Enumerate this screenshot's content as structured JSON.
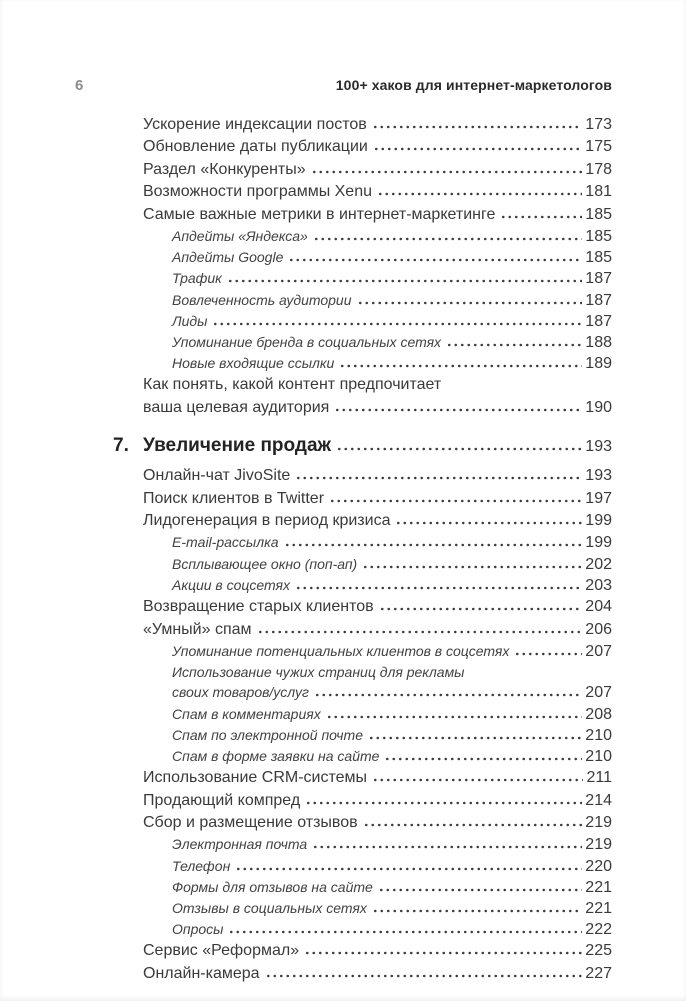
{
  "page_header": {
    "page_number": "6",
    "running_title": "100+ хаков для интернет-маркетологов"
  },
  "colors": {
    "background": "#ffffff",
    "body_text": "#3a3a3a",
    "chapter_text": "#232323",
    "folio_gray": "#8b8b8b"
  },
  "toc": {
    "entries": [
      {
        "level": 1,
        "title": "Ускорение индексации постов",
        "page": "173"
      },
      {
        "level": 1,
        "title": "Обновление даты публикации",
        "page": "175"
      },
      {
        "level": 1,
        "title": "Раздел «Конкуренты»",
        "page": "178"
      },
      {
        "level": 1,
        "title": "Возможности программы Xenu",
        "page": "181"
      },
      {
        "level": 1,
        "title": "Самые важные метрики в интернет-маркетинге",
        "page": "185"
      },
      {
        "level": 2,
        "title": "Апдейты «Яндекса»",
        "page": "185"
      },
      {
        "level": 2,
        "title": "Апдейты Google",
        "page": "185"
      },
      {
        "level": 2,
        "title": "Трафик",
        "page": "187"
      },
      {
        "level": 2,
        "title": "Вовлеченность аудитории",
        "page": "187"
      },
      {
        "level": 2,
        "title": "Лиды",
        "page": "187"
      },
      {
        "level": 2,
        "title": "Упоминание бренда в социальных сетях",
        "page": "188"
      },
      {
        "level": 2,
        "title": "Новые входящие ссылки",
        "page": "189"
      },
      {
        "level": 1,
        "title": "Как понять, какой контент предпочитает",
        "title_line2": "ваша целевая аудитория",
        "page": "190"
      },
      {
        "level": 0,
        "number": "7.",
        "title": "Увеличение продаж",
        "page": "193"
      },
      {
        "level": 1,
        "title": "Онлайн-чат JivoSite",
        "page": "193"
      },
      {
        "level": 1,
        "title": "Поиск клиентов в Twitter",
        "page": "197"
      },
      {
        "level": 1,
        "title": "Лидогенерация в период кризиса",
        "page": "199"
      },
      {
        "level": 2,
        "title": "E-mail-рассылка",
        "page": "199"
      },
      {
        "level": 2,
        "title": "Всплывающее окно (поп-ап)",
        "page": "202"
      },
      {
        "level": 2,
        "title": "Акции в соцсетях",
        "page": "203"
      },
      {
        "level": 1,
        "title": "Возвращение старых клиентов",
        "page": "204"
      },
      {
        "level": 1,
        "title": "«Умный» спам",
        "page": "206"
      },
      {
        "level": 2,
        "title": "Упоминание потенциальных клиентов в соцсетях",
        "page": "207"
      },
      {
        "level": 2,
        "title": "Использование чужих страниц для рекламы",
        "title_line2": "своих товаров/услуг",
        "page": "207"
      },
      {
        "level": 2,
        "title": "Спам в комментариях",
        "page": "208"
      },
      {
        "level": 2,
        "title": "Спам по электронной почте",
        "page": "210"
      },
      {
        "level": 2,
        "title": "Спам в форме заявки на сайте",
        "page": "210"
      },
      {
        "level": 1,
        "title": "Использование CRM-системы",
        "page": "211"
      },
      {
        "level": 1,
        "title": "Продающий компред",
        "page": "214"
      },
      {
        "level": 1,
        "title": "Сбор и размещение отзывов",
        "page": "219"
      },
      {
        "level": 2,
        "title": "Электронная почта",
        "page": "219"
      },
      {
        "level": 2,
        "title": "Телефон",
        "page": "220"
      },
      {
        "level": 2,
        "title": "Формы для отзывов на сайте",
        "page": "221"
      },
      {
        "level": 2,
        "title": "Отзывы в социальных сетях",
        "page": "221"
      },
      {
        "level": 2,
        "title": "Опросы",
        "page": "222"
      },
      {
        "level": 1,
        "title": "Сервис «Реформал»",
        "page": "225"
      },
      {
        "level": 1,
        "title": "Онлайн-камера",
        "page": "227"
      }
    ]
  }
}
